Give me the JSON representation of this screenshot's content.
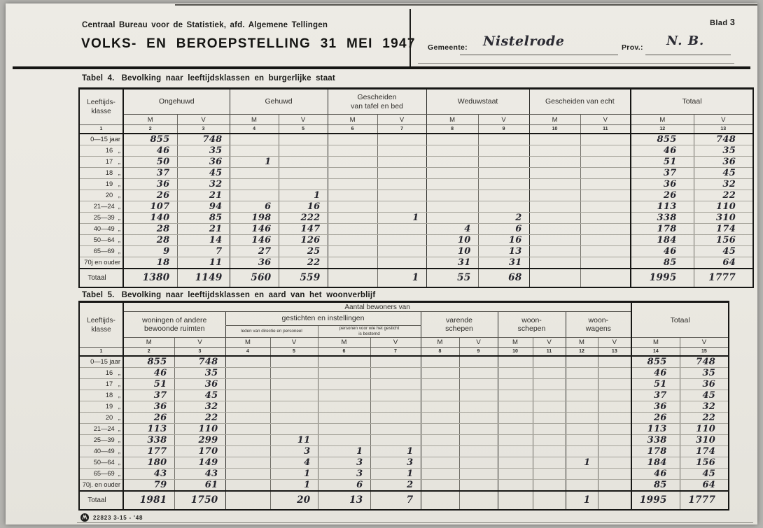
{
  "header": {
    "agency": "Centraal Bureau voor de Statistiek, afd. Algemene Tellingen",
    "title": "VOLKS- EN BEROEPSTELLING 31 MEI 1947",
    "blad_label": "Blad",
    "blad_number": "3",
    "gemeente_label": "Gemeente:",
    "gemeente_value": "Nistelrode",
    "prov_label": "Prov.:",
    "prov_value": "N. B."
  },
  "table4": {
    "number": "Tabel 4.",
    "title": "Bevolking naar leeftijdsklassen en burgerlijke staat",
    "corner": "Leeftijds-\nklasse",
    "groups": [
      "Ongehuwd",
      "Gehuwd",
      "Gescheiden\nvan tafel en bed",
      "Weduwstaat",
      "Gescheiden van echt",
      "Totaal"
    ],
    "m_label": "M",
    "v_label": "V",
    "col_numbers": [
      "1",
      "2",
      "3",
      "4",
      "5",
      "6",
      "7",
      "8",
      "9",
      "10",
      "11",
      "12",
      "13"
    ],
    "rows": [
      [
        "0—15 jaar",
        "855",
        "748",
        "",
        "",
        "",
        "",
        "",
        "",
        "",
        "",
        "855",
        "748"
      ],
      [
        "16   „",
        "46",
        "35",
        "",
        "",
        "",
        "",
        "",
        "",
        "",
        "",
        "46",
        "35"
      ],
      [
        "17   „",
        "50",
        "36",
        "1",
        "",
        "",
        "",
        "",
        "",
        "",
        "",
        "51",
        "36"
      ],
      [
        "18   „",
        "37",
        "45",
        "",
        "",
        "",
        "",
        "",
        "",
        "",
        "",
        "37",
        "45"
      ],
      [
        "19   „",
        "36",
        "32",
        "",
        "",
        "",
        "",
        "",
        "",
        "",
        "",
        "36",
        "32"
      ],
      [
        "20   „",
        "26",
        "21",
        "",
        "1",
        "",
        "",
        "",
        "",
        "",
        "",
        "26",
        "22"
      ],
      [
        "21—24  „",
        "107",
        "94",
        "6",
        "16",
        "",
        "",
        "",
        "",
        "",
        "",
        "113",
        "110"
      ],
      [
        "25—39  „",
        "140",
        "85",
        "198",
        "222",
        "",
        "1",
        "",
        "2",
        "",
        "",
        "338",
        "310"
      ],
      [
        "40—49  „",
        "28",
        "21",
        "146",
        "147",
        "",
        "",
        "4",
        "6",
        "",
        "",
        "178",
        "174"
      ],
      [
        "50—64  „",
        "28",
        "14",
        "146",
        "126",
        "",
        "",
        "10",
        "16",
        "",
        "",
        "184",
        "156"
      ],
      [
        "65—69  „",
        "9",
        "7",
        "27",
        "25",
        "",
        "",
        "10",
        "13",
        "",
        "",
        "46",
        "45"
      ],
      [
        "70j en ouder",
        "18",
        "11",
        "36",
        "22",
        "",
        "",
        "31",
        "31",
        "",
        "",
        "85",
        "64"
      ]
    ],
    "total_row": [
      "Totaal",
      "1380",
      "1149",
      "560",
      "559",
      "",
      "1",
      "55",
      "68",
      "",
      "",
      "1995",
      "1777"
    ]
  },
  "table5": {
    "number": "Tabel 5.",
    "title": "Bevolking naar leeftijdsklassen en aard van het woonverblijf",
    "corner": "Leeftijds-\nklasse",
    "span_header": "Aantal bewoners van",
    "groups": [
      "woningen of andere\nbewoonde ruimten",
      "gestichten en instellingen",
      "varende\nschepen",
      "woon-\nschepen",
      "woon-\nwagens"
    ],
    "subgroups": [
      "leden van directie en personeel",
      "personen voor wie het gesticht\nis bestemd"
    ],
    "totaal_header": "Totaal",
    "m_label": "M",
    "v_label": "V",
    "col_numbers": [
      "1",
      "2",
      "3",
      "4",
      "5",
      "6",
      "7",
      "8",
      "9",
      "10",
      "11",
      "12",
      "13",
      "14",
      "15"
    ],
    "rows": [
      [
        "0—15 jaar",
        "855",
        "748",
        "",
        "",
        "",
        "",
        "",
        "",
        "",
        "",
        "",
        "",
        "855",
        "748"
      ],
      [
        "16   „",
        "46",
        "35",
        "",
        "",
        "",
        "",
        "",
        "",
        "",
        "",
        "",
        "",
        "46",
        "35"
      ],
      [
        "17   „",
        "51",
        "36",
        "",
        "",
        "",
        "",
        "",
        "",
        "",
        "",
        "",
        "",
        "51",
        "36"
      ],
      [
        "18   „",
        "37",
        "45",
        "",
        "",
        "",
        "",
        "",
        "",
        "",
        "",
        "",
        "",
        "37",
        "45"
      ],
      [
        "19   „",
        "36",
        "32",
        "",
        "",
        "",
        "",
        "",
        "",
        "",
        "",
        "",
        "",
        "36",
        "32"
      ],
      [
        "20   „",
        "26",
        "22",
        "",
        "",
        "",
        "",
        "",
        "",
        "",
        "",
        "",
        "",
        "26",
        "22"
      ],
      [
        "21—24  „",
        "113",
        "110",
        "",
        "",
        "",
        "",
        "",
        "",
        "",
        "",
        "",
        "",
        "113",
        "110"
      ],
      [
        "25—39  „",
        "338",
        "299",
        "",
        "11",
        "",
        "",
        "",
        "",
        "",
        "",
        "",
        "",
        "338",
        "310"
      ],
      [
        "40—49  „",
        "177",
        "170",
        "",
        "3",
        "1",
        "1",
        "",
        "",
        "",
        "",
        "",
        "",
        "178",
        "174"
      ],
      [
        "50—64  „",
        "180",
        "149",
        "",
        "4",
        "3",
        "3",
        "",
        "",
        "",
        "",
        "1",
        "",
        "184",
        "156"
      ],
      [
        "65—69  „",
        "43",
        "43",
        "",
        "1",
        "3",
        "1",
        "",
        "",
        "",
        "",
        "",
        "",
        "46",
        "45"
      ],
      [
        "70j. en ouder",
        "79",
        "61",
        "",
        "1",
        "6",
        "2",
        "",
        "",
        "",
        "",
        "",
        "",
        "85",
        "64"
      ]
    ],
    "total_row": [
      "Totaal",
      "1981",
      "1750",
      "",
      "20",
      "13",
      "7",
      "",
      "",
      "",
      "",
      "1",
      "",
      "1995",
      "1777"
    ]
  },
  "footer": {
    "print_code": "22823 3-15 - '48"
  }
}
